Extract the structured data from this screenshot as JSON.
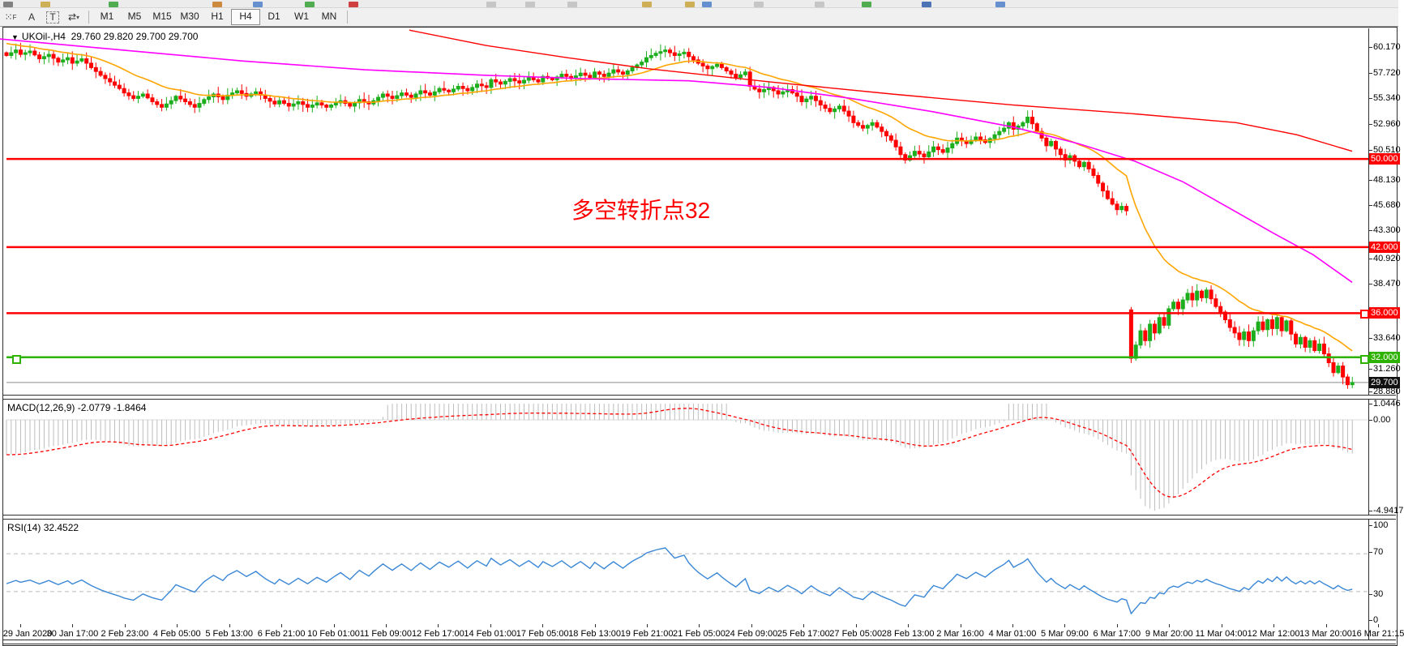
{
  "toolbar": {
    "icons": [
      {
        "name": "grid-f-icon",
        "glyph": "⁙"
      },
      {
        "name": "font-a-icon",
        "glyph": "A"
      },
      {
        "name": "text-box-icon",
        "glyph": "T"
      },
      {
        "name": "cycle-arrows-icon",
        "glyph": "⇄"
      },
      {
        "name": "dropdown-arrow-icon",
        "glyph": "▾"
      }
    ],
    "timeframes": [
      "M1",
      "M5",
      "M15",
      "M30",
      "H1",
      "H4",
      "D1",
      "W1",
      "MN"
    ],
    "active_timeframe": "H4"
  },
  "window_title": {
    "collapse_glyph": "▼",
    "symbol": "UKOil-,H4",
    "quotes": "29.760 29.820 29.700 29.700"
  },
  "annotation": {
    "text": "多空转折点32",
    "color": "#FF0000"
  },
  "colors": {
    "candle_up": "#1CAE1C",
    "candle_down": "#FF0000",
    "ma_fast": "#FFA500",
    "ma_mid": "#FF00FF",
    "ma_slow": "#FF0000",
    "level_red": "#FF0000",
    "level_green": "#2DB200",
    "current_price_line": "#8a8a8a",
    "badge_dark": "#111111",
    "macd_histogram": "#bdbdbd",
    "macd_signal": "#FF0000",
    "rsi_line": "#3A87D6",
    "rsi_levels": "#bbbbbb"
  },
  "chart_data": [
    {
      "type": "candlestick",
      "symbol": "UKOil-",
      "timeframe": "H4",
      "ohlc_display": {
        "open": "29.760",
        "high": "29.820",
        "low": "29.700",
        "close": "29.700"
      },
      "y_ticks": [
        {
          "label": "60.170",
          "y": 58
        },
        {
          "label": "57.720",
          "y": 90
        },
        {
          "label": "55.340",
          "y": 121
        },
        {
          "label": "52.960",
          "y": 153
        },
        {
          "label": "50.510",
          "y": 185
        },
        {
          "label": "48.130",
          "y": 222
        },
        {
          "label": "45.680",
          "y": 253
        },
        {
          "label": "43.300",
          "y": 284
        },
        {
          "label": "40.920",
          "y": 319
        },
        {
          "label": "38.470",
          "y": 350
        },
        {
          "label": "33.640",
          "y": 417
        },
        {
          "label": "31.260",
          "y": 455
        },
        {
          "label": "28.880",
          "y": 483
        }
      ],
      "levels": [
        {
          "value": "50.000",
          "price": 50.0,
          "color": "#FF0000"
        },
        {
          "value": "42.000",
          "price": 42.0,
          "color": "#FF0000"
        },
        {
          "value": "36.000",
          "price": 36.0,
          "color": "#FF0000"
        },
        {
          "value": "32.000",
          "price": 32.0,
          "color": "#2DB200"
        }
      ],
      "current_price": {
        "value": "29.700",
        "price": 29.7
      },
      "x_labels": [
        "29 Jan 2020",
        "30 Jan 17:00",
        "2 Feb 23:00",
        "4 Feb 05:00",
        "5 Feb 13:00",
        "6 Feb 21:00",
        "10 Feb 01:00",
        "11 Feb 09:00",
        "12 Feb 17:00",
        "14 Feb 01:00",
        "17 Feb 05:00",
        "18 Feb 13:00",
        "19 Feb 21:00",
        "21 Feb 05:00",
        "24 Feb 09:00",
        "25 Feb 17:00",
        "27 Feb 05:00",
        "28 Feb 13:00",
        "2 Mar 16:00",
        "4 Mar 01:00",
        "5 Mar 09:00",
        "6 Mar 17:00",
        "9 Mar 20:00",
        "11 Mar 04:00",
        "12 Mar 12:00",
        "13 Mar 20:00",
        "16 Mar 21:15"
      ],
      "gap": {
        "index": 239,
        "open": 36.3
      },
      "price_anchors": [
        [
          0,
          59.4
        ],
        [
          2,
          59.9
        ],
        [
          3,
          59.5
        ],
        [
          5,
          59.8
        ],
        [
          7,
          59.1
        ],
        [
          9,
          59.5
        ],
        [
          11,
          58.8
        ],
        [
          13,
          59.2
        ],
        [
          14,
          58.7
        ],
        [
          16,
          59.1
        ],
        [
          18,
          58.3
        ],
        [
          20,
          57.6
        ],
        [
          22,
          57.0
        ],
        [
          24,
          56.4
        ],
        [
          25,
          56.0
        ],
        [
          27,
          55.5
        ],
        [
          29,
          55.9
        ],
        [
          31,
          55.2
        ],
        [
          33,
          54.7
        ],
        [
          35,
          55.3
        ],
        [
          36,
          55.7
        ],
        [
          38,
          55.2
        ],
        [
          40,
          54.7
        ],
        [
          42,
          55.4
        ],
        [
          44,
          55.9
        ],
        [
          46,
          55.4
        ],
        [
          47,
          55.8
        ],
        [
          49,
          56.2
        ],
        [
          51,
          55.7
        ],
        [
          53,
          56.1
        ],
        [
          55,
          55.5
        ],
        [
          57,
          55.0
        ],
        [
          58,
          55.3
        ],
        [
          60,
          54.8
        ],
        [
          62,
          55.2
        ],
        [
          64,
          54.7
        ],
        [
          66,
          55.1
        ],
        [
          68,
          54.7
        ],
        [
          69,
          54.9
        ],
        [
          71,
          55.3
        ],
        [
          73,
          54.8
        ],
        [
          75,
          55.4
        ],
        [
          77,
          55.0
        ],
        [
          79,
          55.6
        ],
        [
          80,
          55.9
        ],
        [
          82,
          55.5
        ],
        [
          84,
          56.0
        ],
        [
          86,
          55.6
        ],
        [
          88,
          56.2
        ],
        [
          90,
          55.8
        ],
        [
          92,
          56.4
        ],
        [
          94,
          56.1
        ],
        [
          96,
          56.6
        ],
        [
          98,
          56.2
        ],
        [
          100,
          56.8
        ],
        [
          102,
          56.5
        ],
        [
          103,
          57.2
        ],
        [
          105,
          56.8
        ],
        [
          107,
          57.3
        ],
        [
          109,
          56.9
        ],
        [
          111,
          57.4
        ],
        [
          113,
          57.0
        ],
        [
          114,
          57.5
        ],
        [
          116,
          57.2
        ],
        [
          118,
          57.7
        ],
        [
          120,
          57.3
        ],
        [
          122,
          57.8
        ],
        [
          124,
          57.4
        ],
        [
          125,
          57.9
        ],
        [
          127,
          57.5
        ],
        [
          129,
          58.1
        ],
        [
          131,
          57.7
        ],
        [
          133,
          58.3
        ],
        [
          135,
          58.8
        ],
        [
          136,
          59.2
        ],
        [
          138,
          59.6
        ],
        [
          140,
          59.9
        ],
        [
          142,
          59.4
        ],
        [
          144,
          59.7
        ],
        [
          145,
          59.3
        ],
        [
          147,
          58.7
        ],
        [
          149,
          58.2
        ],
        [
          151,
          58.6
        ],
        [
          153,
          58.0
        ],
        [
          155,
          57.4
        ],
        [
          157,
          57.9
        ],
        [
          158,
          56.6
        ],
        [
          160,
          56.1
        ],
        [
          162,
          56.5
        ],
        [
          164,
          55.9
        ],
        [
          166,
          56.3
        ],
        [
          168,
          55.7
        ],
        [
          169,
          55.2
        ],
        [
          171,
          55.7
        ],
        [
          173,
          54.9
        ],
        [
          175,
          54.3
        ],
        [
          177,
          54.8
        ],
        [
          179,
          53.9
        ],
        [
          180,
          53.3
        ],
        [
          182,
          52.8
        ],
        [
          184,
          53.3
        ],
        [
          186,
          52.5
        ],
        [
          188,
          51.7
        ],
        [
          189,
          51.1
        ],
        [
          190,
          50.4
        ],
        [
          191,
          49.9
        ],
        [
          193,
          50.7
        ],
        [
          195,
          50.2
        ],
        [
          197,
          51.1
        ],
        [
          199,
          50.6
        ],
        [
          201,
          51.4
        ],
        [
          202,
          51.9
        ],
        [
          204,
          51.4
        ],
        [
          206,
          52.0
        ],
        [
          208,
          51.5
        ],
        [
          210,
          52.2
        ],
        [
          212,
          52.8
        ],
        [
          213,
          53.3
        ],
        [
          214,
          52.7
        ],
        [
          216,
          53.3
        ],
        [
          217,
          53.8
        ],
        [
          218,
          53.2
        ],
        [
          219,
          52.5
        ],
        [
          220,
          51.9
        ],
        [
          221,
          51.2
        ],
        [
          222,
          51.6
        ],
        [
          223,
          50.9
        ],
        [
          224,
          50.4
        ],
        [
          225,
          49.9
        ],
        [
          226,
          50.3
        ],
        [
          227,
          49.8
        ],
        [
          228,
          49.3
        ],
        [
          229,
          49.7
        ],
        [
          230,
          49.1
        ],
        [
          231,
          48.5
        ],
        [
          232,
          47.8
        ],
        [
          233,
          47.1
        ],
        [
          234,
          46.4
        ],
        [
          235,
          45.9
        ],
        [
          236,
          45.4
        ],
        [
          237,
          45.7
        ],
        [
          238,
          45.3
        ],
        [
          239,
          31.9
        ],
        [
          240,
          33.1
        ],
        [
          241,
          34.4
        ],
        [
          242,
          33.5
        ],
        [
          243,
          35.0
        ],
        [
          244,
          34.2
        ],
        [
          245,
          35.6
        ],
        [
          246,
          34.9
        ],
        [
          247,
          36.4
        ],
        [
          248,
          37.0
        ],
        [
          249,
          36.4
        ],
        [
          250,
          37.2
        ],
        [
          251,
          37.8
        ],
        [
          252,
          37.2
        ],
        [
          253,
          38.0
        ],
        [
          254,
          37.4
        ],
        [
          255,
          38.1
        ],
        [
          256,
          37.3
        ],
        [
          257,
          36.6
        ],
        [
          258,
          36.1
        ],
        [
          259,
          35.4
        ],
        [
          260,
          34.7
        ],
        [
          261,
          34.2
        ],
        [
          262,
          33.6
        ],
        [
          263,
          34.3
        ],
        [
          264,
          33.5
        ],
        [
          265,
          34.4
        ],
        [
          266,
          35.2
        ],
        [
          267,
          34.5
        ],
        [
          268,
          35.4
        ],
        [
          269,
          34.6
        ],
        [
          270,
          35.6
        ],
        [
          271,
          34.4
        ],
        [
          272,
          35.3
        ],
        [
          273,
          34.1
        ],
        [
          274,
          33.2
        ],
        [
          275,
          33.8
        ],
        [
          276,
          32.9
        ],
        [
          277,
          33.5
        ],
        [
          278,
          32.6
        ],
        [
          279,
          33.2
        ],
        [
          280,
          32.3
        ],
        [
          281,
          31.5
        ],
        [
          282,
          30.6
        ],
        [
          283,
          31.2
        ],
        [
          284,
          30.2
        ],
        [
          285,
          29.5
        ],
        [
          286,
          29.7
        ]
      ],
      "ma_mid_anchors": [
        [
          0,
          60.9
        ],
        [
          150,
          59.9
        ],
        [
          300,
          58.9
        ],
        [
          450,
          58.1
        ],
        [
          600,
          57.6
        ],
        [
          720,
          57.3
        ],
        [
          850,
          57.1
        ],
        [
          950,
          56.5
        ],
        [
          1050,
          55.5
        ],
        [
          1150,
          54.3
        ],
        [
          1250,
          52.9
        ],
        [
          1330,
          51.4
        ],
        [
          1400,
          49.8
        ],
        [
          1460,
          47.9
        ],
        [
          1520,
          45.4
        ],
        [
          1570,
          43.3
        ],
        [
          1620,
          41.3
        ],
        [
          1668,
          38.8
        ]
      ],
      "ma_slow_anchors": [
        [
          505,
          61.7
        ],
        [
          600,
          60.3
        ],
        [
          700,
          59.2
        ],
        [
          800,
          58.2
        ],
        [
          950,
          57.0
        ],
        [
          1100,
          55.9
        ],
        [
          1250,
          54.9
        ],
        [
          1400,
          54.1
        ],
        [
          1525,
          53.3
        ],
        [
          1600,
          52.2
        ],
        [
          1668,
          50.7
        ]
      ]
    },
    {
      "type": "macd",
      "label": "MACD(12,26,9)",
      "values_display": "-2.0779 -1.8464",
      "params": {
        "fast": 12,
        "slow": 26,
        "signal": 9
      },
      "y_ticks": [
        {
          "label": "1.0446",
          "y": 498
        },
        {
          "label": "0.00",
          "y": 518
        },
        {
          "label": "-4.9417",
          "y": 630
        }
      ],
      "range": {
        "max": 1.0446,
        "min": -4.9417
      }
    },
    {
      "type": "rsi",
      "label": "RSI(14)",
      "value_display": "32.4522",
      "period": 14,
      "level_lines": [
        70,
        30
      ],
      "y_ticks": [
        {
          "label": "100",
          "y": 648
        },
        {
          "label": "70",
          "y": 681
        },
        {
          "label": "30",
          "y": 733
        },
        {
          "label": "0",
          "y": 765
        }
      ]
    }
  ]
}
